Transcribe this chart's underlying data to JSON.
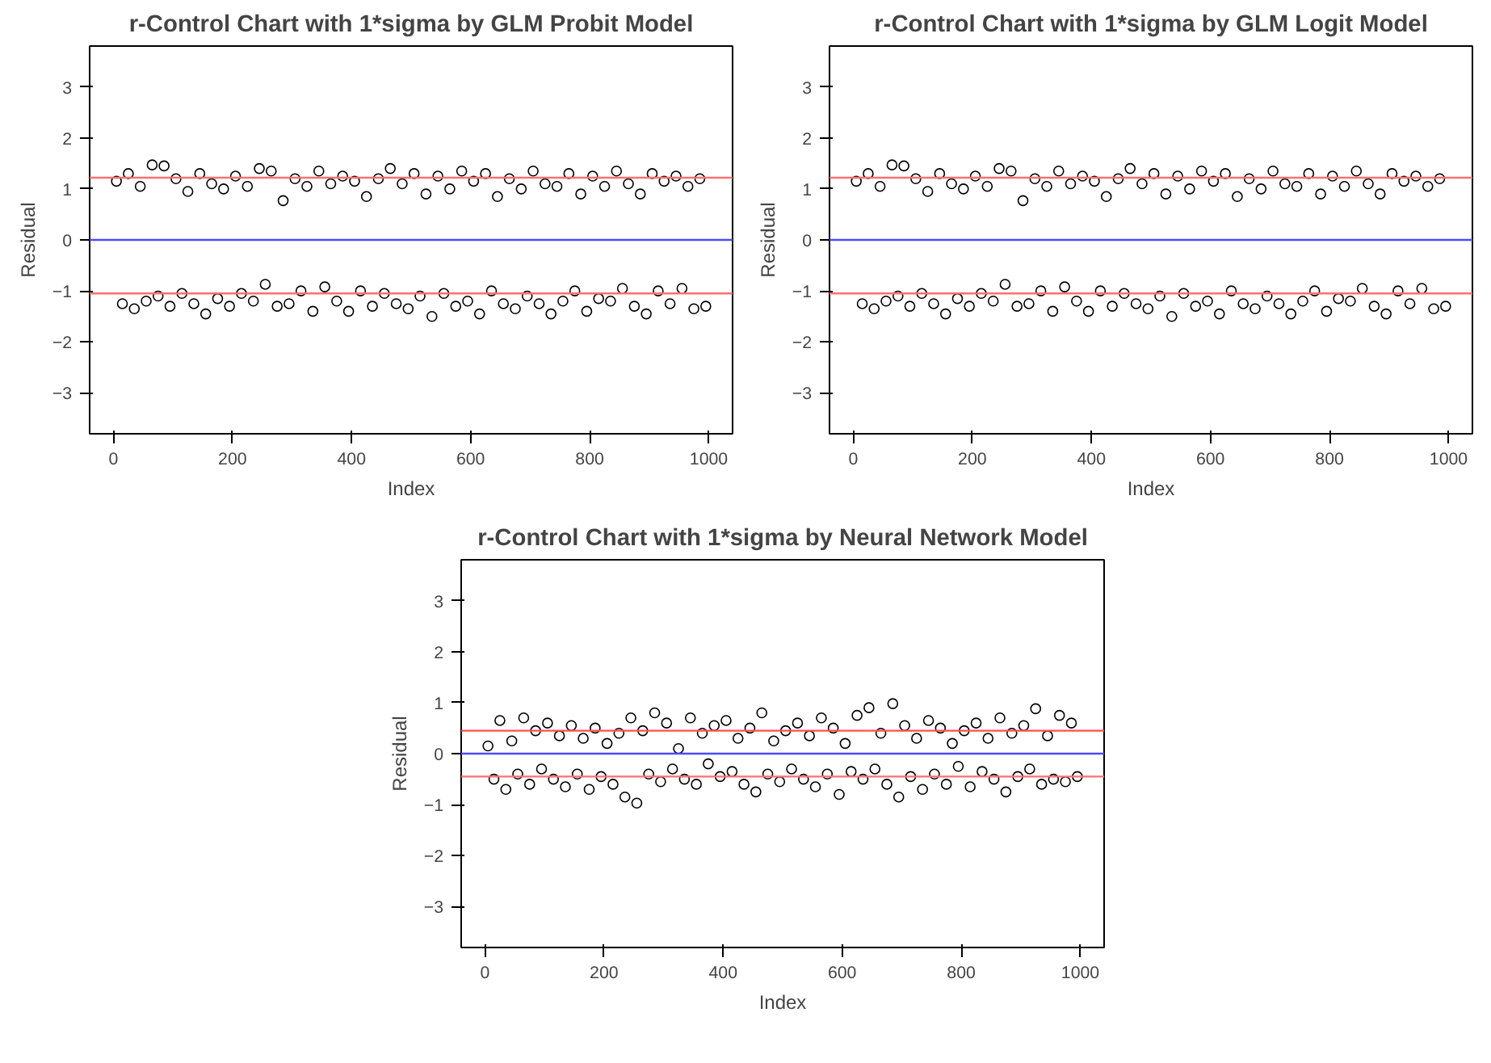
{
  "chart_data": [
    {
      "type": "scatter",
      "title": "r-Control Chart with 1*sigma by GLM Probit Model",
      "xlabel": "Index",
      "ylabel": "Residual",
      "marker": "circle",
      "xlim": [
        -40,
        1040
      ],
      "ylim": [
        -3.8,
        3.8
      ],
      "xticks": [
        0,
        200,
        400,
        600,
        800,
        1000
      ],
      "yticks": [
        -3,
        -2,
        -1,
        0,
        1,
        2,
        3
      ],
      "series": [
        {
          "color": "#000000",
          "x": [
            5,
            15,
            25,
            35,
            45,
            55,
            65,
            75,
            85,
            95,
            105,
            115,
            125,
            135,
            145,
            155,
            165,
            175,
            185,
            195,
            205,
            215,
            225,
            235,
            245,
            255,
            265,
            275,
            285,
            295,
            305,
            315,
            325,
            335,
            345,
            355,
            365,
            375,
            385,
            395,
            405,
            415,
            425,
            435,
            445,
            455,
            465,
            475,
            485,
            495,
            505,
            515,
            525,
            535,
            545,
            555,
            565,
            575,
            585,
            595,
            605,
            615,
            625,
            635,
            645,
            655,
            665,
            675,
            685,
            695,
            705,
            715,
            725,
            735,
            745,
            755,
            765,
            775,
            785,
            795,
            805,
            815,
            825,
            835,
            845,
            855,
            865,
            875,
            885,
            895,
            905,
            915,
            925,
            935,
            945,
            955,
            965,
            975,
            985,
            995
          ],
          "values": [
            1.15,
            -1.25,
            1.3,
            -1.35,
            1.05,
            -1.2,
            1.47,
            -1.1,
            1.45,
            -1.3,
            1.2,
            -1.05,
            0.95,
            -1.25,
            1.3,
            -1.45,
            1.1,
            -1.15,
            1.0,
            -1.3,
            1.25,
            -1.05,
            1.05,
            -1.2,
            1.4,
            -0.87,
            1.35,
            -1.3,
            0.77,
            -1.25,
            1.2,
            -1.0,
            1.05,
            -1.4,
            1.35,
            -0.92,
            1.1,
            -1.2,
            1.25,
            -1.4,
            1.15,
            -1.0,
            0.85,
            -1.3,
            1.2,
            -1.05,
            1.4,
            -1.25,
            1.1,
            -1.35,
            1.3,
            -1.1,
            0.9,
            -1.5,
            1.25,
            -1.05,
            1.0,
            -1.3,
            1.35,
            -1.2,
            1.15,
            -1.45,
            1.3,
            -1.0,
            0.85,
            -1.25,
            1.2,
            -1.35,
            1.0,
            -1.1,
            1.35,
            -1.25,
            1.1,
            -1.45,
            1.05,
            -1.2,
            1.3,
            -1.0,
            0.9,
            -1.4,
            1.25,
            -1.15,
            1.05,
            -1.2,
            1.35,
            -0.95,
            1.1,
            -1.3,
            0.9,
            -1.45,
            1.3,
            -1.0,
            1.15,
            -1.25,
            1.25,
            -0.95,
            1.05,
            -1.35,
            1.2,
            -1.3
          ]
        }
      ],
      "ref_lines": [
        {
          "axis": "y",
          "value": 0,
          "color": "#4b4bff"
        },
        {
          "axis": "y",
          "value": 1.22,
          "color": "#ff7070"
        },
        {
          "axis": "y",
          "value": -1.05,
          "color": "#ff7070"
        }
      ]
    },
    {
      "type": "scatter",
      "title": "r-Control Chart with 1*sigma by GLM Logit Model",
      "xlabel": "Index",
      "ylabel": "Residual",
      "marker": "circle",
      "xlim": [
        -40,
        1040
      ],
      "ylim": [
        -3.8,
        3.8
      ],
      "xticks": [
        0,
        200,
        400,
        600,
        800,
        1000
      ],
      "yticks": [
        -3,
        -2,
        -1,
        0,
        1,
        2,
        3
      ],
      "series": [
        {
          "color": "#000000",
          "x": [
            5,
            15,
            25,
            35,
            45,
            55,
            65,
            75,
            85,
            95,
            105,
            115,
            125,
            135,
            145,
            155,
            165,
            175,
            185,
            195,
            205,
            215,
            225,
            235,
            245,
            255,
            265,
            275,
            285,
            295,
            305,
            315,
            325,
            335,
            345,
            355,
            365,
            375,
            385,
            395,
            405,
            415,
            425,
            435,
            445,
            455,
            465,
            475,
            485,
            495,
            505,
            515,
            525,
            535,
            545,
            555,
            565,
            575,
            585,
            595,
            605,
            615,
            625,
            635,
            645,
            655,
            665,
            675,
            685,
            695,
            705,
            715,
            725,
            735,
            745,
            755,
            765,
            775,
            785,
            795,
            805,
            815,
            825,
            835,
            845,
            855,
            865,
            875,
            885,
            895,
            905,
            915,
            925,
            935,
            945,
            955,
            965,
            975,
            985,
            995
          ],
          "values": [
            1.15,
            -1.25,
            1.3,
            -1.35,
            1.05,
            -1.2,
            1.47,
            -1.1,
            1.45,
            -1.3,
            1.2,
            -1.05,
            0.95,
            -1.25,
            1.3,
            -1.45,
            1.1,
            -1.15,
            1.0,
            -1.3,
            1.25,
            -1.05,
            1.05,
            -1.2,
            1.4,
            -0.87,
            1.35,
            -1.3,
            0.77,
            -1.25,
            1.2,
            -1.0,
            1.05,
            -1.4,
            1.35,
            -0.92,
            1.1,
            -1.2,
            1.25,
            -1.4,
            1.15,
            -1.0,
            0.85,
            -1.3,
            1.2,
            -1.05,
            1.4,
            -1.25,
            1.1,
            -1.35,
            1.3,
            -1.1,
            0.9,
            -1.5,
            1.25,
            -1.05,
            1.0,
            -1.3,
            1.35,
            -1.2,
            1.15,
            -1.45,
            1.3,
            -1.0,
            0.85,
            -1.25,
            1.2,
            -1.35,
            1.0,
            -1.1,
            1.35,
            -1.25,
            1.1,
            -1.45,
            1.05,
            -1.2,
            1.3,
            -1.0,
            0.9,
            -1.4,
            1.25,
            -1.15,
            1.05,
            -1.2,
            1.35,
            -0.95,
            1.1,
            -1.3,
            0.9,
            -1.45,
            1.3,
            -1.0,
            1.15,
            -1.25,
            1.25,
            -0.95,
            1.05,
            -1.35,
            1.2,
            -1.3
          ]
        }
      ],
      "ref_lines": [
        {
          "axis": "y",
          "value": 0,
          "color": "#4b4bff"
        },
        {
          "axis": "y",
          "value": 1.22,
          "color": "#ff7070"
        },
        {
          "axis": "y",
          "value": -1.05,
          "color": "#ff7070"
        }
      ]
    },
    {
      "type": "scatter",
      "title": "r-Control Chart with 1*sigma by Neural Network Model",
      "xlabel": "Index",
      "ylabel": "Residual",
      "marker": "circle",
      "xlim": [
        -40,
        1040
      ],
      "ylim": [
        -3.8,
        3.8
      ],
      "xticks": [
        0,
        200,
        400,
        600,
        800,
        1000
      ],
      "yticks": [
        -3,
        -2,
        -1,
        0,
        1,
        2,
        3
      ],
      "series": [
        {
          "color": "#000000",
          "x": [
            5,
            15,
            25,
            35,
            45,
            55,
            65,
            75,
            85,
            95,
            105,
            115,
            125,
            135,
            145,
            155,
            165,
            175,
            185,
            195,
            205,
            215,
            225,
            235,
            245,
            255,
            265,
            275,
            285,
            295,
            305,
            315,
            325,
            335,
            345,
            355,
            365,
            375,
            385,
            395,
            405,
            415,
            425,
            435,
            445,
            455,
            465,
            475,
            485,
            495,
            505,
            515,
            525,
            535,
            545,
            555,
            565,
            575,
            585,
            595,
            605,
            615,
            625,
            635,
            645,
            655,
            665,
            675,
            685,
            695,
            705,
            715,
            725,
            735,
            745,
            755,
            765,
            775,
            785,
            795,
            805,
            815,
            825,
            835,
            845,
            855,
            865,
            875,
            885,
            895,
            905,
            915,
            925,
            935,
            945,
            955,
            965,
            975,
            985,
            995
          ],
          "values": [
            0.15,
            -0.5,
            0.65,
            -0.7,
            0.25,
            -0.4,
            0.7,
            -0.6,
            0.45,
            -0.3,
            0.6,
            -0.5,
            0.35,
            -0.65,
            0.55,
            -0.4,
            0.3,
            -0.7,
            0.5,
            -0.45,
            0.2,
            -0.6,
            0.4,
            -0.85,
            0.7,
            -0.97,
            0.45,
            -0.4,
            0.8,
            -0.55,
            0.6,
            -0.3,
            0.1,
            -0.5,
            0.7,
            -0.6,
            0.4,
            -0.2,
            0.55,
            -0.45,
            0.65,
            -0.35,
            0.3,
            -0.6,
            0.5,
            -0.75,
            0.8,
            -0.4,
            0.25,
            -0.55,
            0.45,
            -0.3,
            0.6,
            -0.5,
            0.35,
            -0.65,
            0.7,
            -0.4,
            0.5,
            -0.8,
            0.2,
            -0.35,
            0.75,
            -0.5,
            0.9,
            -0.3,
            0.4,
            -0.6,
            0.98,
            -0.85,
            0.55,
            -0.45,
            0.3,
            -0.7,
            0.65,
            -0.4,
            0.5,
            -0.6,
            0.2,
            -0.25,
            0.45,
            -0.65,
            0.6,
            -0.35,
            0.3,
            -0.5,
            0.7,
            -0.75,
            0.4,
            -0.45,
            0.55,
            -0.3,
            0.88,
            -0.6,
            0.35,
            -0.5,
            0.75,
            -0.55,
            0.6,
            -0.45
          ]
        }
      ],
      "ref_lines": [
        {
          "axis": "y",
          "value": 0,
          "color": "#4b4bff"
        },
        {
          "axis": "y",
          "value": 0.45,
          "color": "#ff5050"
        },
        {
          "axis": "y",
          "value": -0.45,
          "color": "#ff7070"
        }
      ]
    }
  ]
}
